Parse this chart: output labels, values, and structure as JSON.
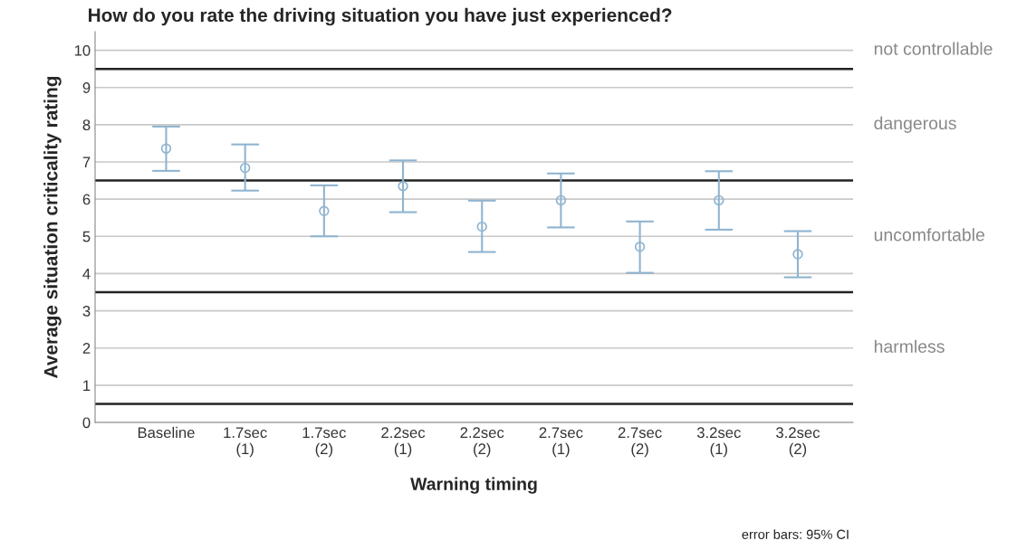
{
  "chart_data": {
    "type": "scatter",
    "title": "How do you rate the driving situation you have just experienced?",
    "xlabel": "Warning timing",
    "ylabel": "Average situation criticality rating",
    "categories": [
      "Baseline",
      "1.7sec\n(1)",
      "1.7sec\n(2)",
      "2.2sec\n(1)",
      "2.2sec\n(2)",
      "2.7sec\n(1)",
      "2.7sec\n(2)",
      "3.2sec\n(1)",
      "3.2sec\n(2)"
    ],
    "series": [
      {
        "color": "#8fb4d0",
        "values": [
          7.36,
          6.84,
          5.68,
          6.35,
          5.26,
          5.97,
          4.72,
          5.97,
          4.52
        ],
        "errors": [
          [
            6.76,
            7.95
          ],
          [
            6.23,
            7.47
          ],
          [
            5.0,
            6.37
          ],
          [
            5.65,
            7.04
          ],
          [
            4.58,
            5.96
          ],
          [
            5.24,
            6.69
          ],
          [
            4.02,
            5.4
          ],
          [
            5.18,
            6.75
          ],
          [
            3.9,
            5.14
          ]
        ]
      }
    ],
    "marker": "circle",
    "ylim": [
      0,
      10.5
    ],
    "yticks": [
      0,
      1,
      2,
      3,
      4,
      5,
      6,
      7,
      8,
      9,
      10
    ],
    "grid": "y",
    "ref_lines": [
      {
        "axis": "y",
        "value": 0.5,
        "color": "#222222"
      },
      {
        "axis": "y",
        "value": 3.5,
        "color": "#222222"
      },
      {
        "axis": "y",
        "value": 6.5,
        "color": "#222222"
      },
      {
        "axis": "y",
        "value": 9.5,
        "color": "#222222"
      }
    ],
    "annotations": [
      "not controllable",
      "dangerous",
      "uncomfortable",
      "harmless",
      "error bars: 95% CI"
    ]
  }
}
